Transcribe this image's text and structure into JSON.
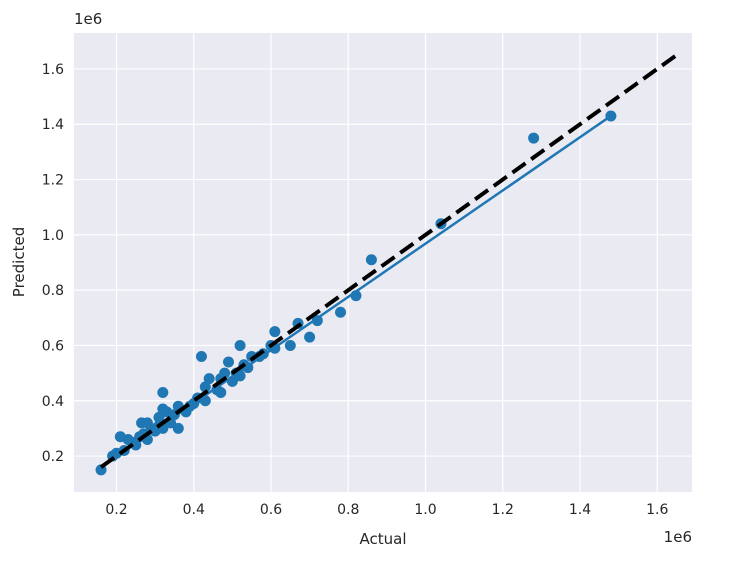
{
  "chart_data": {
    "type": "scatter",
    "xlabel": "Actual",
    "ylabel": "Predicted",
    "x_offset_label": "1e6",
    "y_offset_label": "1e6",
    "xlim": [
      0.09,
      1.69
    ],
    "ylim": [
      0.07,
      1.73
    ],
    "x_ticks": [
      0.2,
      0.4,
      0.6,
      0.8,
      1.0,
      1.2,
      1.4,
      1.6
    ],
    "x_tick_labels": [
      "0.2",
      "0.4",
      "0.6",
      "0.8",
      "1.0",
      "1.2",
      "1.4",
      "1.6"
    ],
    "y_ticks": [
      0.2,
      0.4,
      0.6,
      0.8,
      1.0,
      1.2,
      1.4,
      1.6
    ],
    "y_tick_labels": [
      "0.2",
      "0.4",
      "0.6",
      "0.8",
      "1.0",
      "1.2",
      "1.4",
      "1.6"
    ],
    "grid": true,
    "background_color": "#eaeaf2",
    "point_color": "#1f77b4",
    "fit_line_color": "#1f77b4",
    "identity_line_color": "#000000",
    "points": [
      [
        0.16,
        0.15
      ],
      [
        0.19,
        0.2
      ],
      [
        0.2,
        0.21
      ],
      [
        0.21,
        0.27
      ],
      [
        0.22,
        0.22
      ],
      [
        0.23,
        0.26
      ],
      [
        0.24,
        0.25
      ],
      [
        0.25,
        0.24
      ],
      [
        0.26,
        0.27
      ],
      [
        0.265,
        0.32
      ],
      [
        0.27,
        0.28
      ],
      [
        0.28,
        0.26
      ],
      [
        0.28,
        0.32
      ],
      [
        0.29,
        0.3
      ],
      [
        0.3,
        0.29
      ],
      [
        0.31,
        0.31
      ],
      [
        0.31,
        0.34
      ],
      [
        0.32,
        0.3
      ],
      [
        0.32,
        0.37
      ],
      [
        0.32,
        0.43
      ],
      [
        0.33,
        0.36
      ],
      [
        0.34,
        0.32
      ],
      [
        0.35,
        0.35
      ],
      [
        0.36,
        0.38
      ],
      [
        0.36,
        0.3
      ],
      [
        0.38,
        0.36
      ],
      [
        0.39,
        0.38
      ],
      [
        0.4,
        0.39
      ],
      [
        0.41,
        0.41
      ],
      [
        0.42,
        0.56
      ],
      [
        0.43,
        0.4
      ],
      [
        0.43,
        0.45
      ],
      [
        0.44,
        0.48
      ],
      [
        0.46,
        0.44
      ],
      [
        0.47,
        0.43
      ],
      [
        0.47,
        0.48
      ],
      [
        0.48,
        0.5
      ],
      [
        0.49,
        0.54
      ],
      [
        0.5,
        0.47
      ],
      [
        0.51,
        0.5
      ],
      [
        0.52,
        0.49
      ],
      [
        0.52,
        0.6
      ],
      [
        0.53,
        0.53
      ],
      [
        0.54,
        0.52
      ],
      [
        0.55,
        0.56
      ],
      [
        0.57,
        0.56
      ],
      [
        0.58,
        0.57
      ],
      [
        0.6,
        0.6
      ],
      [
        0.61,
        0.59
      ],
      [
        0.61,
        0.65
      ],
      [
        0.65,
        0.6
      ],
      [
        0.67,
        0.68
      ],
      [
        0.7,
        0.63
      ],
      [
        0.72,
        0.69
      ],
      [
        0.78,
        0.72
      ],
      [
        0.82,
        0.78
      ],
      [
        0.86,
        0.91
      ],
      [
        1.04,
        1.04
      ],
      [
        1.28,
        1.35
      ],
      [
        1.48,
        1.43
      ]
    ],
    "fit_line": [
      [
        0.16,
        0.16
      ],
      [
        1.48,
        1.43
      ]
    ],
    "identity_line": [
      [
        0.16,
        0.16
      ],
      [
        1.66,
        1.66
      ]
    ]
  }
}
